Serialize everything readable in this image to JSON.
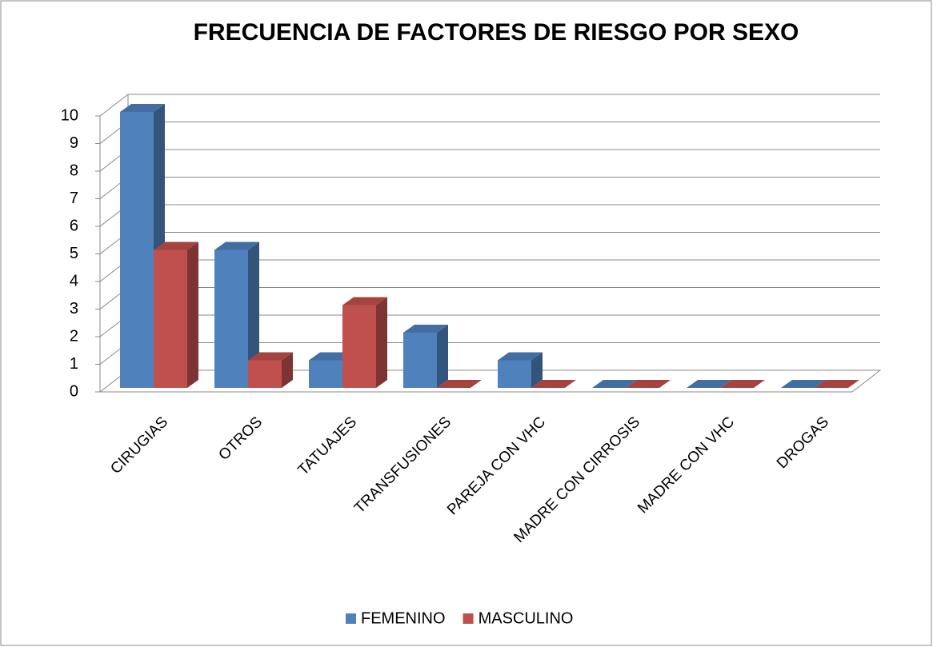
{
  "chart_data": {
    "type": "bar3d",
    "title": "FRECUENCIA  DE FACTORES DE RIESGO POR SEXO",
    "categories": [
      "CIRUGIAS",
      "OTROS",
      "TATUAJES",
      "TRANSFUSIONES",
      "PAREJA CON VHC",
      "MADRE CON  CIRROSIS",
      "MADRE CON VHC",
      "DROGAS"
    ],
    "series": [
      {
        "name": "FEMENINO",
        "color": "#4f81bd",
        "values": [
          10,
          5,
          1,
          2,
          1,
          0,
          0,
          0
        ]
      },
      {
        "name": "MASCULINO",
        "color": "#c0504d",
        "values": [
          5,
          1,
          3,
          0,
          0,
          0,
          0,
          0
        ]
      }
    ],
    "ylim": [
      0,
      10
    ],
    "yticks": [
      0,
      1,
      2,
      3,
      4,
      5,
      6,
      7,
      8,
      9,
      10
    ],
    "grid": true,
    "legend": "bottom"
  }
}
